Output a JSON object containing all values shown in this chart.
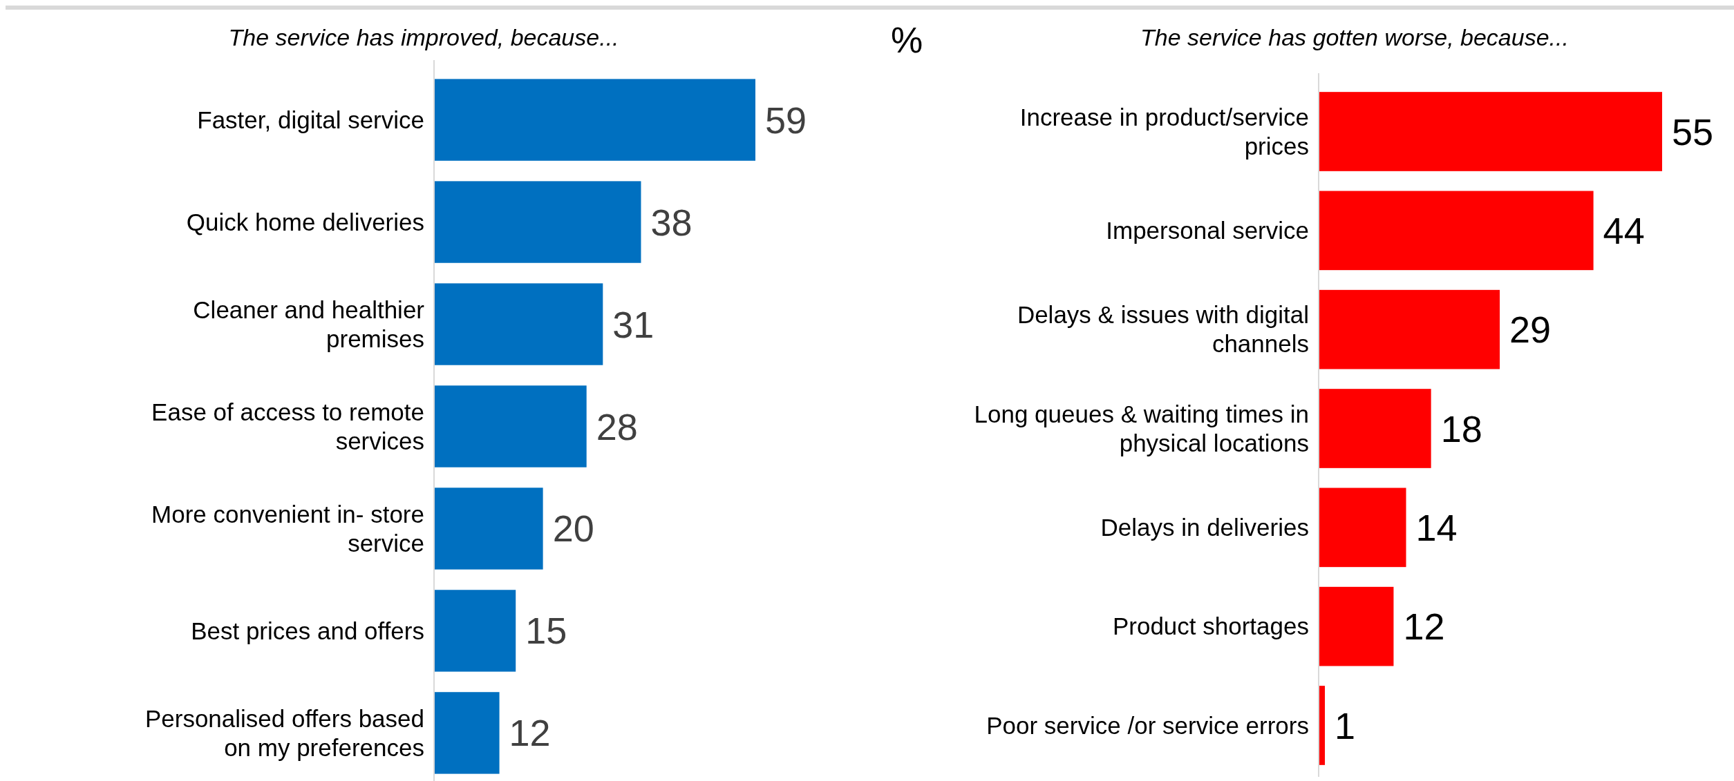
{
  "chart_data": [
    {
      "type": "bar",
      "orientation": "horizontal",
      "title": "The service has improved, because...",
      "categories": [
        "Faster, digital service",
        "Quick home deliveries",
        "Cleaner and healthier premises",
        "Ease of access to remote services",
        "More convenient in- store service",
        "Best prices and offers",
        "Personalised offers based on my preferences"
      ],
      "values": [
        59,
        38,
        31,
        28,
        20,
        15,
        12
      ],
      "color": "#0070c0",
      "data_labels": true
    },
    {
      "type": "bar",
      "orientation": "horizontal",
      "title": "The service has gotten worse, because...",
      "annotations": [
        "%"
      ],
      "categories": [
        "Increase in product/service prices",
        "Impersonal service",
        "Delays & issues with digital channels",
        "Long queues & waiting times in physical locations",
        "Delays in deliveries",
        "Product shortages",
        "Poor service /or service errors"
      ],
      "values": [
        55,
        44,
        29,
        18,
        14,
        12,
        1
      ],
      "color": "#ff0000",
      "data_labels": true
    }
  ]
}
